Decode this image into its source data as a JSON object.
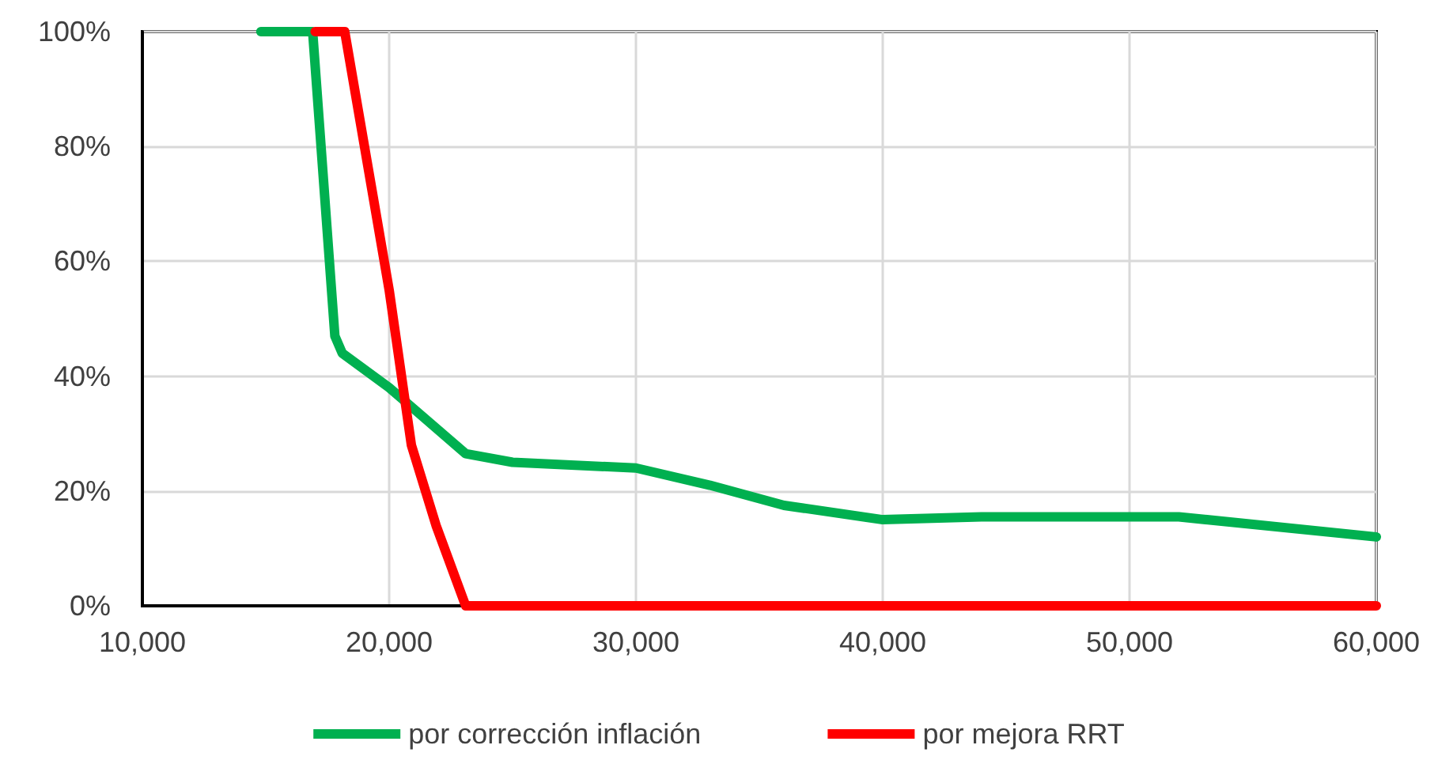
{
  "chart_data": {
    "type": "line",
    "xlim": [
      10000,
      60000
    ],
    "ylim": [
      0,
      100
    ],
    "xticks": [
      {
        "value": 10000,
        "label": "10,000"
      },
      {
        "value": 20000,
        "label": "20,000"
      },
      {
        "value": 30000,
        "label": "30,000"
      },
      {
        "value": 40000,
        "label": "40,000"
      },
      {
        "value": 50000,
        "label": "50,000"
      },
      {
        "value": 60000,
        "label": "60,000"
      }
    ],
    "yticks": [
      {
        "value": 0,
        "label": "0%"
      },
      {
        "value": 20,
        "label": "20%"
      },
      {
        "value": 40,
        "label": "40%"
      },
      {
        "value": 60,
        "label": "60%"
      },
      {
        "value": 80,
        "label": "80%"
      },
      {
        "value": 100,
        "label": "100%"
      }
    ],
    "grid": true,
    "legend": "bottom",
    "marker": "none",
    "line_style": "solid",
    "series": [
      {
        "name": "por corrección inflación",
        "color": "#00b050",
        "x": [
          14800,
          16900,
          17800,
          18100,
          20000,
          23100,
          25000,
          30000,
          33000,
          36000,
          40000,
          44000,
          52000,
          60000
        ],
        "values": [
          100,
          100,
          47,
          44,
          38,
          26.5,
          25,
          24,
          21,
          17.5,
          15,
          15.5,
          15.5,
          12
        ]
      },
      {
        "name": "por mejora RRT",
        "color": "#ff0000",
        "x": [
          17000,
          18200,
          19000,
          20000,
          20900,
          21900,
          23100,
          30000,
          40000,
          50000,
          60000
        ],
        "values": [
          100,
          100,
          80,
          55,
          28,
          14,
          0,
          0,
          0,
          0,
          0
        ]
      }
    ]
  }
}
